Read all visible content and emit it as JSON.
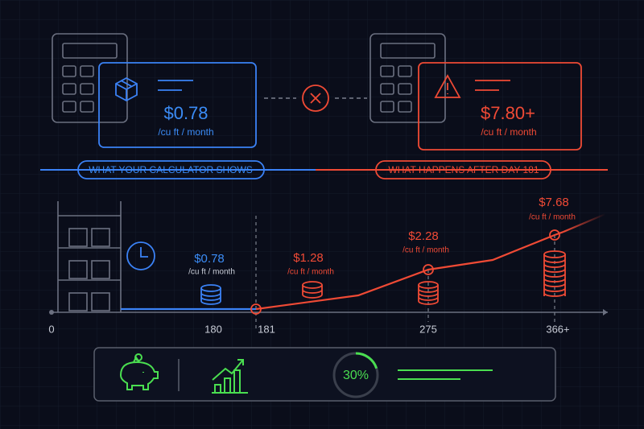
{
  "top": {
    "left_card": {
      "price": "$0.78",
      "unit": "/cu ft / month"
    },
    "right_card": {
      "price": "$7.80+",
      "unit": "/cu ft / month"
    }
  },
  "banner": {
    "left": "WHAT YOUR CALCULATOR SHOWS",
    "right": "WHAT HAPPENS AFTER DAY 181"
  },
  "timeline": {
    "ticks": [
      "0",
      "180",
      "181",
      "275",
      "366+"
    ],
    "points": [
      {
        "price": "$0.78",
        "unit": "/cu ft / month"
      },
      {
        "price": "$1.28",
        "unit": "/cu ft / month"
      },
      {
        "price": "$2.28",
        "unit": "/cu ft / month"
      },
      {
        "price": "$7.68",
        "unit": "/cu ft / month"
      }
    ]
  },
  "summary": {
    "percent": "30%"
  }
}
